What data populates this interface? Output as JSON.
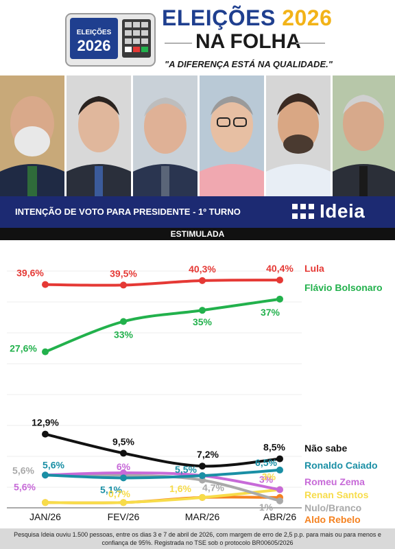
{
  "header": {
    "title_word1": "ELEIÇÕES",
    "title_word2": "2026",
    "title_line2": "NA FOLHA",
    "slogan": "\"A DIFERENÇA ESTÁ NA QUALIDADE.\"",
    "badge_line1": "ELEIÇÕES",
    "badge_line2": "2026"
  },
  "banner": {
    "title": "INTENÇÃO DE VOTO PARA PRESIDENTE - 1º TURNO",
    "brand": "Ideia"
  },
  "subheader": "ESTIMULADA",
  "chart_data": {
    "type": "line",
    "categories": [
      "JAN/26",
      "FEV/26",
      "MAR/26",
      "ABR/26"
    ],
    "ylim": [
      0,
      42
    ],
    "grid": true,
    "series": [
      {
        "name": "Lula",
        "color": "#e53935",
        "values": [
          39.6,
          39.5,
          40.3,
          40.4
        ],
        "labels": [
          "39,6%",
          "39,5%",
          "40,3%",
          "40,4%"
        ]
      },
      {
        "name": "Flávio Bolsonaro",
        "color": "#22b14c",
        "values": [
          27.6,
          33,
          35,
          37
        ],
        "labels": [
          "27,6%",
          "33%",
          "35%",
          "37%"
        ]
      },
      {
        "name": "Não sabe",
        "color": "#111111",
        "values": [
          12.9,
          9.5,
          7.2,
          8.5
        ],
        "labels": [
          "12,9%",
          "9,5%",
          "7,2%",
          "8,5%"
        ]
      },
      {
        "name": "Ronaldo Caiado",
        "color": "#1a8fa5",
        "values": [
          5.6,
          5.1,
          5.5,
          6.5
        ],
        "labels": [
          "5,6%",
          "5,1%",
          "5,5%",
          "6,5%"
        ]
      },
      {
        "name": "Romeu Zema",
        "color": "#c76ad8",
        "values": [
          5.6,
          6,
          5.5,
          3
        ],
        "labels": [
          "5,6%",
          "6%",
          "",
          "3%"
        ]
      },
      {
        "name": "Renan Santos",
        "color": "#f7dc4a",
        "values": [
          0.7,
          0.7,
          1.6,
          3
        ],
        "labels": [
          "",
          "0,7%",
          "1,6%",
          "3%"
        ]
      },
      {
        "name": "Nulo/Branco",
        "color": "#a9a9a9",
        "values": [
          5.6,
          5.6,
          4.7,
          1
        ],
        "labels": [
          "5,6%",
          "",
          "4,7%",
          "1%"
        ]
      },
      {
        "name": "Aldo Rebelo",
        "color": "#f58220",
        "values": [
          0.7,
          0.7,
          1.6,
          1.6
        ],
        "labels": [
          "",
          "",
          "",
          ""
        ]
      }
    ]
  },
  "footer": {
    "note": "Pesquisa Ideia ouviu 1.500 pessoas, entre os dias 3 e 7 de abril de 2026, com margem de erro de 2,5 p.p. para mais ou para menos e confiança de 95%. Registrada no TSE sob o protocolo BR00605/2026"
  }
}
